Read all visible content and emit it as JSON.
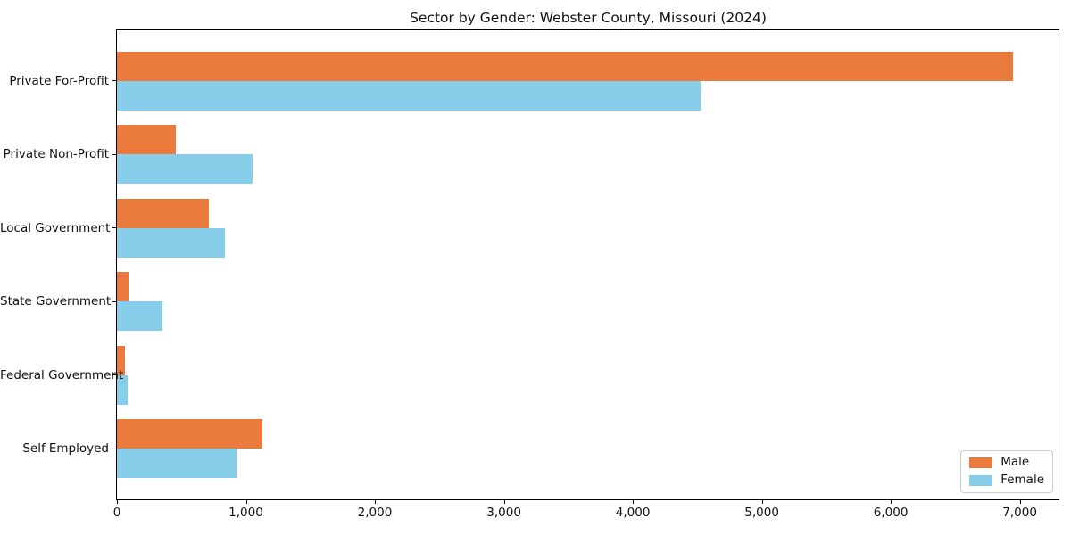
{
  "chart_data": {
    "type": "bar",
    "orientation": "horizontal",
    "title": "Sector by Gender: Webster County, Missouri (2024)",
    "categories": [
      "Private For-Profit",
      "Private Non-Profit",
      "Local Government",
      "State Government",
      "Federal Government",
      "Self-Employed"
    ],
    "series": [
      {
        "name": "Male",
        "color": "#EB7B3C",
        "values": [
          6950,
          455,
          715,
          90,
          60,
          1130
        ]
      },
      {
        "name": "Female",
        "color": "#87CEEB",
        "values": [
          4525,
          1050,
          835,
          350,
          80,
          925
        ]
      }
    ],
    "xlabel": "",
    "ylabel": "",
    "xlim": [
      0,
      7300
    ],
    "xticks": [
      0,
      1000,
      2000,
      3000,
      4000,
      5000,
      6000,
      7000
    ],
    "xtick_labels": [
      "0",
      "1,000",
      "2,000",
      "3,000",
      "4,000",
      "5,000",
      "6,000",
      "7,000"
    ],
    "grid": false,
    "legend": {
      "position": "lower right",
      "entries": [
        "Male",
        "Female"
      ]
    },
    "colors": {
      "background": "#ffffff",
      "axis": "#000000",
      "legend_border": "#cccccc"
    }
  }
}
